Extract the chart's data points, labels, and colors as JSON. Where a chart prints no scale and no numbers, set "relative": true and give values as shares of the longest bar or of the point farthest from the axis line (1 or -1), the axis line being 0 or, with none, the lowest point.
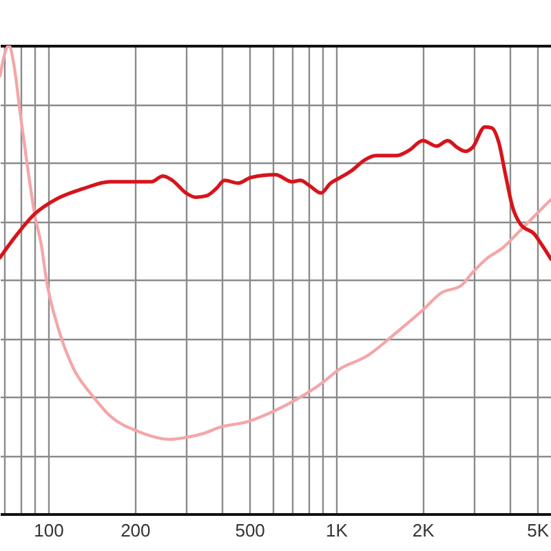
{
  "chart_data": {
    "type": "line",
    "relative": true,
    "log": "x",
    "grid": true,
    "xlim": [
      68,
      5580
    ],
    "xticks": [
      {
        "value": 70,
        "label": null
      },
      {
        "value": 80,
        "label": null
      },
      {
        "value": 90,
        "label": null
      },
      100,
      200,
      {
        "value": 300,
        "label": null
      },
      {
        "value": 400,
        "label": null
      },
      500,
      {
        "value": 600,
        "label": null
      },
      {
        "value": 700,
        "label": null
      },
      {
        "value": 800,
        "label": null
      },
      {
        "value": 900,
        "label": null
      },
      {
        "value": 1000,
        "label": "1K"
      },
      {
        "value": 2000,
        "label": "2K"
      },
      {
        "value": 3000,
        "label": null
      },
      {
        "value": 4000,
        "label": null
      },
      {
        "value": 5000,
        "label": "5K"
      }
    ],
    "series": [
      {
        "color": "#f4a6a8",
        "x": [
          68,
          73,
          76,
          80,
          85,
          90,
          95,
          98,
          109,
          122,
          142,
          164,
          205,
          264,
          294,
          344,
          396,
          494,
          616,
          785,
          906,
          1011,
          1288,
          1606,
          2001,
          2310,
          2726,
          2977,
          3323,
          3793,
          4474,
          5577
        ],
        "values": [
          0.935,
          1,
          0.959,
          0.853,
          0.735,
          0.635,
          0.568,
          0.509,
          0.391,
          0.312,
          0.253,
          0.209,
          0.176,
          0.159,
          0.162,
          0.171,
          0.185,
          0.197,
          0.221,
          0.256,
          0.282,
          0.306,
          0.338,
          0.385,
          0.435,
          0.471,
          0.488,
          0.515,
          0.544,
          0.568,
          0.612,
          0.671
        ]
      },
      {
        "color": "#d7141b",
        "x": [
          68,
          76,
          90,
          106,
          132,
          164,
          205,
          228,
          250,
          270,
          301,
          325,
          355,
          383,
          410,
          457,
          505,
          616,
          703,
          751,
          811,
          886,
          957,
          1034,
          1129,
          1260,
          1377,
          1624,
          1793,
          2001,
          2235,
          2442,
          2637,
          2817,
          2977,
          3286,
          3473,
          3670,
          3877,
          4098,
          4377,
          4887,
          5163,
          5577
        ],
        "values": [
          0.547,
          0.588,
          0.641,
          0.671,
          0.694,
          0.709,
          0.709,
          0.709,
          0.721,
          0.712,
          0.685,
          0.676,
          0.679,
          0.694,
          0.712,
          0.706,
          0.718,
          0.724,
          0.709,
          0.712,
          0.7,
          0.685,
          0.706,
          0.718,
          0.732,
          0.756,
          0.765,
          0.765,
          0.776,
          0.797,
          0.785,
          0.797,
          0.782,
          0.774,
          0.782,
          0.826,
          0.824,
          0.794,
          0.724,
          0.656,
          0.618,
          0.597,
          0.576,
          0.544
        ]
      }
    ]
  }
}
